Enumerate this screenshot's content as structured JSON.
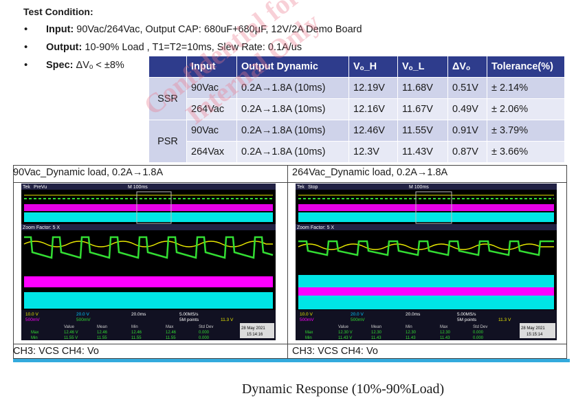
{
  "heading": "Test Condition:",
  "conditions": [
    {
      "label": "Input:",
      "text": "90Vac/264Vac, Output CAP: 680uF+680μF, 12V/2A Demo Board"
    },
    {
      "label": "Output:",
      "text": "10-90% Load , T1=T2=10ms, Slew Rate: 0.1A/us"
    },
    {
      "label": "Spec:",
      "text": "ΔVₒ < ±8%"
    }
  ],
  "table": {
    "headers": [
      "Input",
      "Output Dynamic",
      "Vₒ_H",
      "Vₒ_L",
      "ΔVₒ",
      "Tolerance(%)"
    ],
    "groups": [
      {
        "name": "SSR",
        "rows": [
          [
            "90Vac",
            "0.2A→1.8A (10ms)",
            "12.19V",
            "11.68V",
            "0.51V",
            "± 2.14%"
          ],
          [
            "264Vac",
            "0.2A→1.8A (10ms)",
            "12.16V",
            "11.67V",
            "0.49V",
            "± 2.06%"
          ]
        ]
      },
      {
        "name": "PSR",
        "rows": [
          [
            "90Vac",
            "0.2A→1.8A (10ms)",
            "12.46V",
            "11.55V",
            "0.91V",
            "± 3.79%"
          ],
          [
            "264Vax",
            "0.2A→1.8A (10ms)",
            "12.3V",
            "11.43V",
            "0.87V",
            "± 3.66%"
          ]
        ]
      }
    ]
  },
  "panels": [
    {
      "title": "90Vac_Dynamic load, 0.2A→1.8A",
      "footer": "CH3: VCS CH4: Vo",
      "scope": {
        "brand": "Tek",
        "mode": "PreVu",
        "top_time": "M 100ms",
        "zoom": "Zoom Factor: 5 X",
        "ch1": "10.0 V",
        "ch2": "20.0 V",
        "ch3": "500mV",
        "ch4": "500mV",
        "timebase": "20.0ms",
        "rate": "5.00MS/s",
        "points": "5M points",
        "trig": "11.3 V",
        "stats_head": [
          "Value",
          "Mean",
          "Min",
          "Max",
          "Std Dev"
        ],
        "stat_max": [
          "Max",
          "12.46 V",
          "12.46",
          "12.46",
          "12.46",
          "0.000"
        ],
        "stat_min": [
          "Min",
          "11.55 V",
          "11.55",
          "11.55",
          "11.55",
          "0.000"
        ],
        "date": "28 May 2021",
        "time": "15:14:16"
      }
    },
    {
      "title": "264Vac_Dynamic load, 0.2A→1.8A",
      "footer": "CH3: VCS CH4: Vo",
      "scope": {
        "brand": "Tek",
        "mode": "Stop",
        "top_time": "M 100ms",
        "zoom": "Zoom Factor: 5 X",
        "ch1": "10.0 V",
        "ch2": "20.0 V",
        "ch3": "500mV",
        "ch4": "500mV",
        "timebase": "20.0ms",
        "rate": "5.00MS/s",
        "points": "5M points",
        "trig": "11.3 V",
        "stats_head": [
          "Value",
          "Mean",
          "Min",
          "Max",
          "Std Dev"
        ],
        "stat_max": [
          "Max",
          "12.30 V",
          "12.30",
          "12.30",
          "12.30",
          "0.000"
        ],
        "stat_min": [
          "Min",
          "11.43 V",
          "11.43",
          "11.43",
          "11.43",
          "0.000"
        ],
        "date": "28 May 2021",
        "time": "15:15:14"
      }
    }
  ],
  "caption": "Dynamic Response (10%-90%Load)",
  "watermark": [
    "Confidential for",
    "Internal Only"
  ],
  "colors": {
    "header_bg": "#2e3c8c",
    "row_dark": "#cfd3ea",
    "row_light": "#e7e9f5",
    "ch1": "#e8e800",
    "ch2": "#00c8ff",
    "ch3": "#ff00ff",
    "ch4": "#33dd33"
  }
}
